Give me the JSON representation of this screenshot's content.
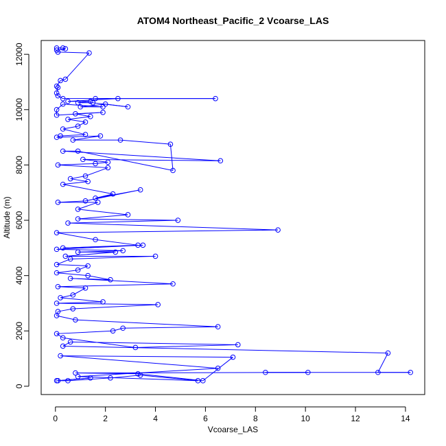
{
  "chart_data": {
    "type": "line",
    "title": "ATOM4 Northeast_Pacific_2 Vcoarse_LAS",
    "xlabel": "Vcoarse_LAS",
    "ylabel": "Altitude (m)",
    "xlim": [
      -0.57,
      14.77
    ],
    "ylim": [
      -300,
      12500
    ],
    "x_ticks": [
      0,
      2,
      4,
      6,
      8,
      10,
      12,
      14
    ],
    "y_ticks": [
      0,
      2000,
      4000,
      6000,
      8000,
      10000,
      12000
    ],
    "grid": false,
    "color": "#0000ff",
    "marker": "open-circle",
    "series": [
      {
        "points": [
          [
            0.05,
            12230
          ],
          [
            0.3,
            12230
          ],
          [
            0.4,
            12200
          ],
          [
            0.05,
            12150
          ],
          [
            0.1,
            12080
          ],
          [
            1.35,
            12050
          ],
          [
            0.4,
            11100
          ],
          [
            0.2,
            11050
          ],
          [
            0.05,
            10850
          ],
          [
            0.1,
            10800
          ],
          [
            0.05,
            10600
          ],
          [
            0.1,
            10500
          ],
          [
            0.3,
            10400
          ],
          [
            6.4,
            10400
          ],
          [
            1.6,
            10400
          ],
          [
            2.5,
            10400
          ],
          [
            0.5,
            10300
          ],
          [
            1.4,
            10300
          ],
          [
            0.9,
            10250
          ],
          [
            1.5,
            10250
          ],
          [
            2.9,
            10100
          ],
          [
            2.0,
            10200
          ],
          [
            1.0,
            10100
          ],
          [
            1.9,
            10100
          ],
          [
            0.3,
            10200
          ],
          [
            0.05,
            10000
          ],
          [
            0.05,
            9800
          ],
          [
            1.9,
            9900
          ],
          [
            0.8,
            9850
          ],
          [
            1.4,
            9750
          ],
          [
            0.5,
            9650
          ],
          [
            1.2,
            9550
          ],
          [
            0.9,
            9400
          ],
          [
            0.3,
            9300
          ],
          [
            1.2,
            9100
          ],
          [
            0.2,
            9050
          ],
          [
            0.05,
            9000
          ],
          [
            1.8,
            9050
          ],
          [
            0.7,
            8900
          ],
          [
            2.6,
            8900
          ],
          [
            4.6,
            8750
          ],
          [
            4.7,
            7800
          ],
          [
            0.9,
            8500
          ],
          [
            0.3,
            8500
          ],
          [
            6.6,
            8150
          ],
          [
            1.1,
            8200
          ],
          [
            2.1,
            8100
          ],
          [
            1.6,
            8050
          ],
          [
            0.1,
            8000
          ],
          [
            2.1,
            7900
          ],
          [
            1.2,
            7600
          ],
          [
            0.6,
            7500
          ],
          [
            1.3,
            7400
          ],
          [
            0.3,
            7300
          ],
          [
            2.3,
            6950
          ],
          [
            1.6,
            6800
          ],
          [
            3.4,
            7100
          ],
          [
            1.2,
            6700
          ],
          [
            0.1,
            6650
          ],
          [
            1.7,
            6650
          ],
          [
            0.9,
            6400
          ],
          [
            2.9,
            6200
          ],
          [
            0.9,
            6050
          ],
          [
            4.9,
            6000
          ],
          [
            0.5,
            5900
          ],
          [
            8.9,
            5650
          ],
          [
            0.05,
            5550
          ],
          [
            1.6,
            5300
          ],
          [
            3.3,
            5100
          ],
          [
            0.3,
            5000
          ],
          [
            3.5,
            5100
          ],
          [
            0.05,
            4950
          ],
          [
            2.7,
            4900
          ],
          [
            0.9,
            4850
          ],
          [
            2.4,
            4850
          ],
          [
            0.4,
            4700
          ],
          [
            4.0,
            4700
          ],
          [
            0.6,
            4600
          ],
          [
            0.05,
            4400
          ],
          [
            1.3,
            4350
          ],
          [
            0.9,
            4200
          ],
          [
            0.05,
            4100
          ],
          [
            1.3,
            4000
          ],
          [
            2.2,
            3850
          ],
          [
            0.6,
            3900
          ],
          [
            4.7,
            3700
          ],
          [
            0.1,
            3600
          ],
          [
            1.2,
            3550
          ],
          [
            0.7,
            3300
          ],
          [
            0.2,
            3200
          ],
          [
            1.9,
            3050
          ],
          [
            0.05,
            3000
          ],
          [
            4.1,
            2950
          ],
          [
            0.7,
            2800
          ],
          [
            0.1,
            2700
          ],
          [
            0.05,
            2550
          ],
          [
            0.8,
            2400
          ],
          [
            6.5,
            2150
          ],
          [
            2.7,
            2100
          ],
          [
            2.3,
            2000
          ],
          [
            0.05,
            1900
          ],
          [
            0.3,
            1750
          ],
          [
            3.2,
            1400
          ],
          [
            7.3,
            1500
          ],
          [
            0.6,
            1600
          ],
          [
            0.3,
            1450
          ],
          [
            13.3,
            1200
          ],
          [
            12.9,
            500
          ],
          [
            14.2,
            500
          ],
          [
            8.4,
            500
          ],
          [
            10.1,
            500
          ],
          [
            0.8,
            480
          ],
          [
            3.3,
            450
          ],
          [
            5.9,
            200
          ],
          [
            7.1,
            1050
          ],
          [
            0.2,
            1100
          ],
          [
            6.5,
            650
          ],
          [
            0.9,
            350
          ],
          [
            5.7,
            200
          ],
          [
            3.4,
            400
          ],
          [
            2.2,
            300
          ],
          [
            0.5,
            200
          ],
          [
            0.1,
            200
          ],
          [
            1.4,
            300
          ],
          [
            0.05,
            200
          ]
        ]
      }
    ]
  }
}
